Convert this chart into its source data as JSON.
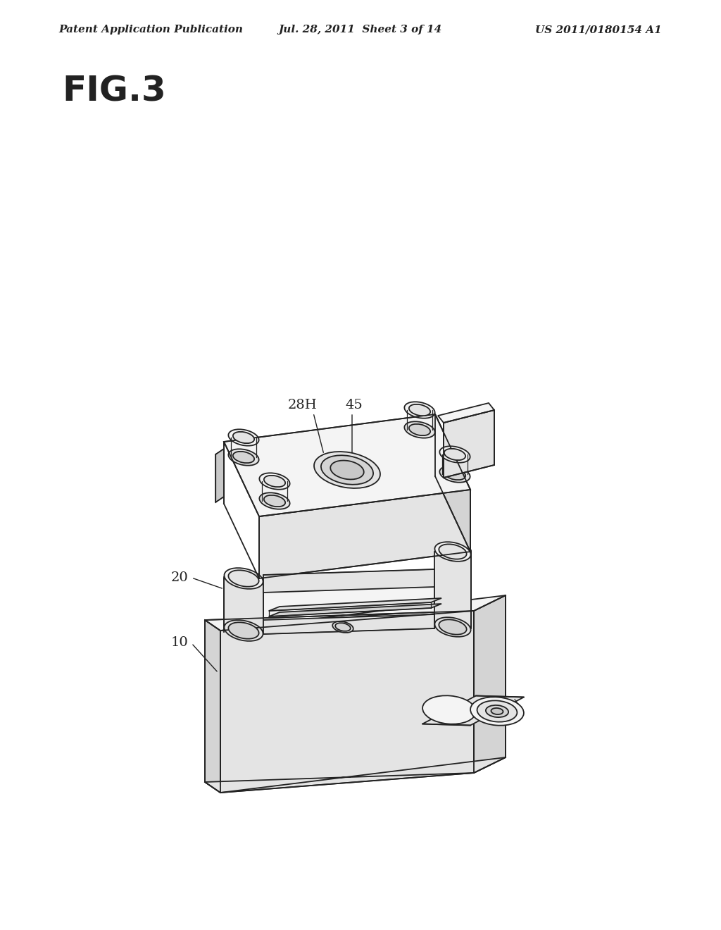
{
  "bg_color": "#ffffff",
  "line_color": "#222222",
  "header_left": "Patent Application Publication",
  "header_center": "Jul. 28, 2011  Sheet 3 of 14",
  "header_right": "US 2011/0180154 A1",
  "fig_label": "FIG.3",
  "label_fontsize": 14,
  "header_fontsize": 11,
  "fig_label_fontsize": 36,
  "face_light": "#f4f4f4",
  "face_mid": "#e4e4e4",
  "face_dark": "#d4d4d4",
  "face_darker": "#c8c8c8"
}
